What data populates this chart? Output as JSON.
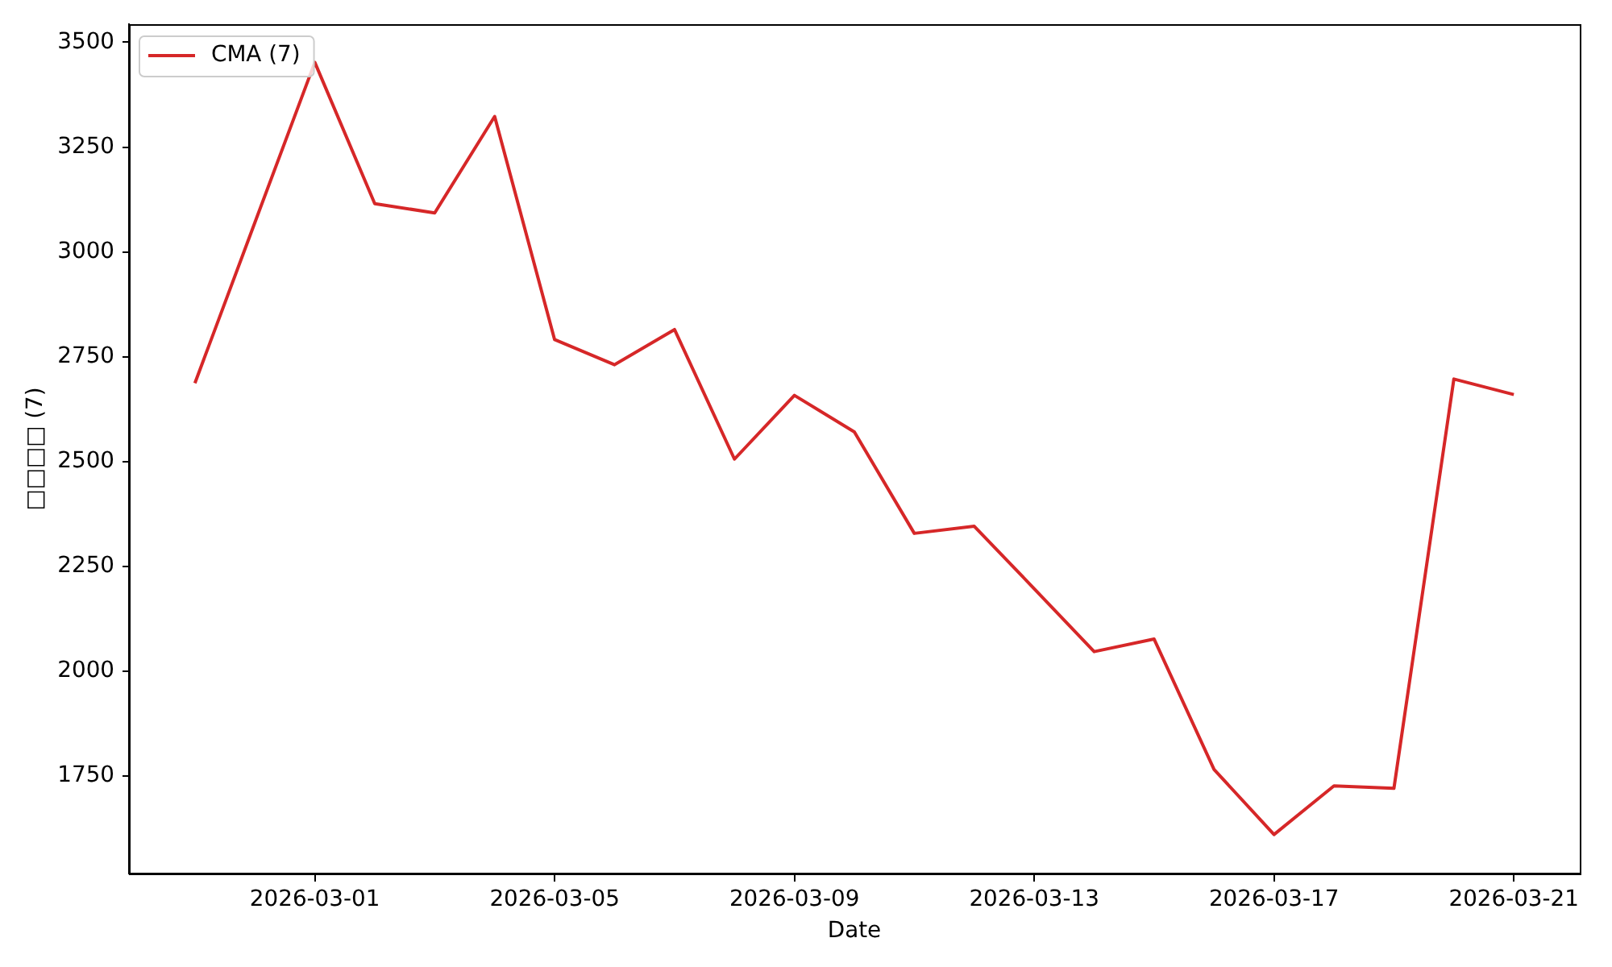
{
  "chart_data": {
    "type": "line",
    "xlabel": "Date",
    "ylabel": "□□□□ (7)",
    "x": [
      "2026-02-27",
      "2026-02-28",
      "2026-03-01",
      "2026-03-02",
      "2026-03-03",
      "2026-03-04",
      "2026-03-05",
      "2026-03-06",
      "2026-03-07",
      "2026-03-08",
      "2026-03-09",
      "2026-03-10",
      "2026-03-11",
      "2026-03-12",
      "2026-03-13",
      "2026-03-14",
      "2026-03-15",
      "2026-03-16",
      "2026-03-17",
      "2026-03-18",
      "2026-03-19",
      "2026-03-20",
      "2026-03-21"
    ],
    "series": [
      {
        "name": "CMA (7)",
        "color": "#d62728",
        "values": [
          2687,
          3070,
          3452,
          3115,
          3093,
          3323,
          2791,
          2731,
          2815,
          2506,
          2658,
          2571,
          2329,
          2346,
          2197,
          2047,
          2077,
          1766,
          1611,
          1727,
          1721,
          2697,
          2660
        ]
      }
    ],
    "xlim": [
      "2026-02-25T21:36",
      "2026-03-22T02:24"
    ],
    "xticks": [
      "2026-03-01",
      "2026-03-05",
      "2026-03-09",
      "2026-03-13",
      "2026-03-17",
      "2026-03-21"
    ],
    "ylim": [
      1518,
      3543
    ],
    "yticks": [
      1750,
      2000,
      2250,
      2500,
      2750,
      3000,
      3250,
      3500
    ],
    "grid": false,
    "legend": "top left",
    "marker": "none",
    "line_style": "solid"
  }
}
